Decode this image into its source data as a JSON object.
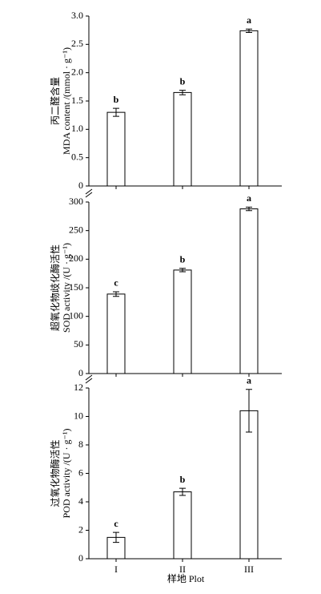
{
  "chart_data": [
    {
      "type": "bar",
      "ylabel": [
        "丙二醛含量",
        "MDA content /(mmol · g⁻¹)"
      ],
      "categories": [
        null,
        null,
        null
      ],
      "values": [
        1.3,
        1.65,
        2.74
      ],
      "errors": [
        0.07,
        0.04,
        0.03
      ],
      "annotations": [
        "b",
        "b",
        "a"
      ],
      "color": "#ffffff",
      "ylim": [
        0,
        3
      ],
      "yticks": [
        0,
        0.5,
        {
          "value": 1,
          "label": "1.0"
        },
        1.5,
        {
          "value": 2,
          "label": "2.0"
        },
        2.5,
        {
          "value": 3,
          "label": "3.0"
        }
      ]
    },
    {
      "type": "bar",
      "ylabel": [
        "超氧化物歧化酶活性",
        "SOD activity /(U · g⁻¹)"
      ],
      "categories": [
        null,
        null,
        null
      ],
      "values": [
        139,
        181,
        288
      ],
      "errors": [
        4,
        3,
        3
      ],
      "annotations": [
        "c",
        "b",
        "a"
      ],
      "color": "#ffffff",
      "ylim": [
        0,
        300
      ],
      "yticks": [
        0,
        50,
        100,
        150,
        200,
        250,
        300
      ]
    },
    {
      "type": "bar",
      "ylabel": [
        "过氧化物酶活性",
        "POD activity /(U · g⁻¹)"
      ],
      "xlabel": "样地  Plot",
      "categories": [
        "I",
        "II",
        "III"
      ],
      "values": [
        1.5,
        4.7,
        10.4
      ],
      "errors": [
        0.35,
        0.25,
        1.5
      ],
      "annotations": [
        "c",
        "b",
        "a"
      ],
      "color": "#ffffff",
      "ylim": [
        0,
        12
      ],
      "yticks": [
        0,
        2,
        4,
        6,
        8,
        10,
        12
      ]
    }
  ]
}
